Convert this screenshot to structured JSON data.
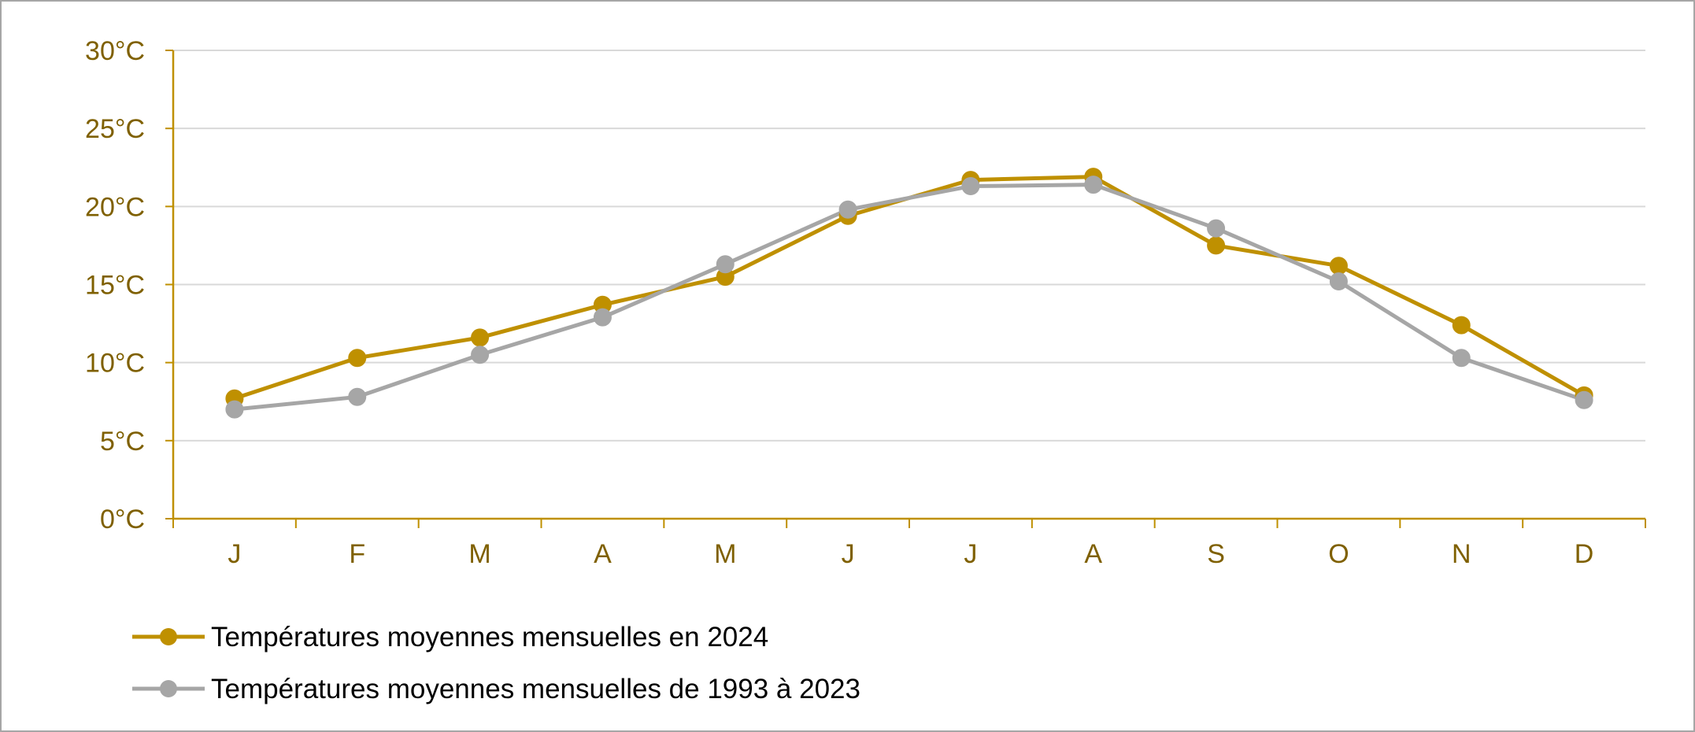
{
  "chart_data": {
    "type": "line",
    "title": "",
    "xlabel": "",
    "ylabel": "",
    "categories": [
      "J",
      "F",
      "M",
      "A",
      "M",
      "J",
      "J",
      "A",
      "S",
      "O",
      "N",
      "D"
    ],
    "y_ticks": [
      {
        "value": 0,
        "label": "0°C"
      },
      {
        "value": 5,
        "label": "5°C"
      },
      {
        "value": 10,
        "label": "10°C"
      },
      {
        "value": 15,
        "label": "15°C"
      },
      {
        "value": 20,
        "label": "20°C"
      },
      {
        "value": 25,
        "label": "25°C"
      },
      {
        "value": 30,
        "label": "30°C"
      }
    ],
    "ylim": [
      0,
      30
    ],
    "grid": true,
    "legend_position": "bottom-left",
    "series": [
      {
        "name": "Températures moyennes mensuelles en 2024",
        "color": "#bf9000",
        "values": [
          7.7,
          10.3,
          11.6,
          13.7,
          15.5,
          19.4,
          21.7,
          21.9,
          17.5,
          16.2,
          12.4,
          7.9
        ]
      },
      {
        "name": "Températures moyennes mensuelles de 1993 à 2023",
        "color": "#a6a6a6",
        "values": [
          7.0,
          7.8,
          10.5,
          12.9,
          16.3,
          19.8,
          21.3,
          21.4,
          18.6,
          15.2,
          10.3,
          7.6
        ]
      }
    ],
    "axis_color": "#bf9000",
    "grid_color": "#d9d9d9",
    "label_color": "#7f6000"
  }
}
